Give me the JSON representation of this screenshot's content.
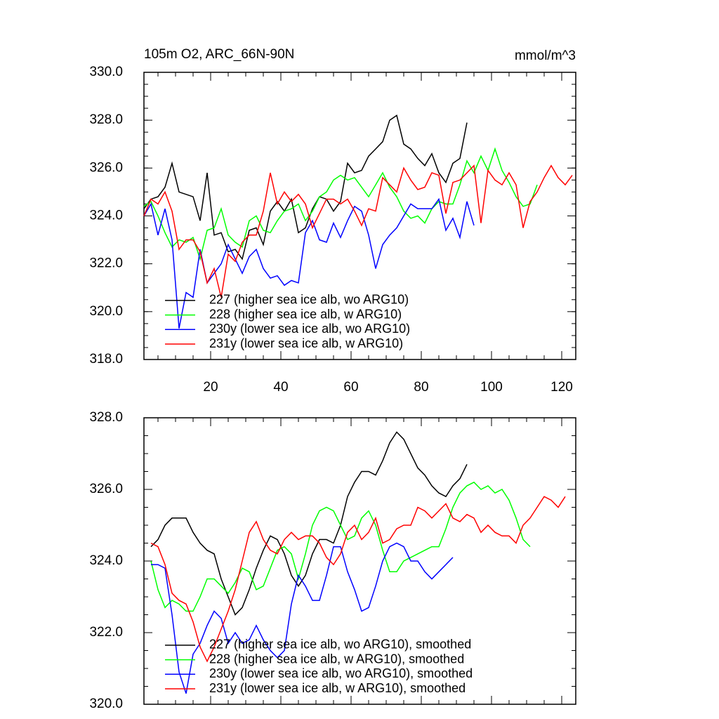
{
  "chart_data": [
    {
      "type": "line",
      "title": "105m O2, ARC_66N-90N",
      "units": "mmol/m^3",
      "xlim": [
        1,
        124
      ],
      "xticks": [
        20,
        40,
        60,
        80,
        100,
        120
      ],
      "ylim": [
        318,
        330
      ],
      "yticks": [
        {
          "value": 318,
          "label": "318.0"
        },
        {
          "value": 320,
          "label": "320.0"
        },
        {
          "value": 322,
          "label": "322.0"
        },
        {
          "value": 324,
          "label": "324.0"
        },
        {
          "value": 326,
          "label": "326.0"
        },
        {
          "value": 328,
          "label": "328.0"
        },
        {
          "value": 330,
          "label": "330.0"
        }
      ],
      "show_xtick_labels": true,
      "legend": "lower left",
      "x": [
        1,
        3,
        5,
        7,
        9,
        11,
        13,
        15,
        17,
        19,
        21,
        23,
        25,
        27,
        29,
        31,
        33,
        35,
        37,
        39,
        41,
        43,
        45,
        47,
        49,
        51,
        53,
        55,
        57,
        59,
        61,
        63,
        65,
        67,
        69,
        71,
        73,
        75,
        77,
        79,
        81,
        83,
        85,
        87,
        89,
        91,
        93,
        95,
        97,
        99,
        101,
        103,
        105,
        107,
        109,
        111,
        113,
        115,
        117,
        119,
        121,
        123
      ],
      "series": [
        {
          "name": "227 (higher sea ice alb, wo ARG10)",
          "color": "#000000",
          "values": [
            324.3,
            324.7,
            324.8,
            325.2,
            326.2,
            325,
            324.9,
            324.8,
            323.8,
            325.8,
            323.2,
            323.3,
            322.5,
            322.6,
            322.2,
            323.4,
            323.5,
            322.8,
            324.2,
            324.6,
            324.2,
            324.7,
            323.3,
            323.5,
            324.3,
            324.8,
            324.7,
            324.2,
            324.6,
            326.2,
            325.8,
            325.9,
            326.5,
            326.8,
            327.1,
            328,
            328.2,
            327,
            326.8,
            326.4,
            326.1,
            326.6,
            325.8,
            325.4,
            326.2,
            326.4,
            327.9,
            null,
            null,
            null,
            null,
            null,
            null,
            null,
            null,
            null,
            null,
            null,
            null,
            null,
            null,
            null
          ]
        },
        {
          "name": "228 (higher sea ice alb, w ARG10)",
          "color": "#00ff00",
          "values": [
            324.4,
            324.6,
            324,
            323.3,
            322.7,
            323,
            322.9,
            323.1,
            322.2,
            323.4,
            323.5,
            324.3,
            323.2,
            322.9,
            322.7,
            323.8,
            324,
            323.4,
            323.3,
            323.8,
            324.2,
            324.3,
            324.5,
            323.8,
            324.2,
            324.8,
            325,
            325.5,
            325.7,
            325.5,
            325.6,
            325.2,
            324.8,
            325.3,
            325.8,
            325.2,
            324.8,
            324.2,
            323.9,
            324,
            323.7,
            324.3,
            324.6,
            324.5,
            324.5,
            325.3,
            326.3,
            325.8,
            326.5,
            325.9,
            326.8,
            325.9,
            325.4,
            324.8,
            324.4,
            324.5,
            325.3,
            null,
            null,
            null,
            null,
            null
          ]
        },
        {
          "name": "230y (lower sea ice alb, wo ARG10)",
          "color": "#0000ff",
          "values": [
            324,
            324.5,
            323.2,
            324.3,
            323,
            319.3,
            320.8,
            320.6,
            322.6,
            321.2,
            321.6,
            322,
            322.8,
            322.2,
            321.6,
            322.3,
            322.6,
            321.8,
            321.4,
            321.5,
            321.1,
            321.3,
            321.2,
            323.3,
            323.8,
            323,
            322.9,
            323.7,
            323.1,
            323.8,
            324.4,
            324.2,
            323.2,
            321.8,
            322.8,
            323.2,
            323.5,
            324,
            324.5,
            324.3,
            324.3,
            324.3,
            324.7,
            323.4,
            323.9,
            323.1,
            324.6,
            323.6,
            null,
            null,
            null,
            null,
            null,
            null,
            null,
            null,
            null,
            null,
            null,
            null,
            null,
            null
          ]
        },
        {
          "name": "231y (lower sea ice alb, w ARG10)",
          "color": "#ff0000",
          "values": [
            324,
            324.7,
            324.5,
            325,
            324.2,
            322.6,
            323,
            323,
            322.5,
            321.2,
            321.8,
            320.6,
            322.4,
            322.1,
            322.9,
            323.2,
            323.2,
            324.2,
            325.8,
            324.5,
            325,
            324.6,
            324.9,
            324.5,
            323.5,
            324.1,
            324.7,
            324.7,
            324.5,
            324.7,
            324.2,
            323.6,
            324.3,
            324.2,
            325.6,
            325.3,
            325,
            326,
            325.5,
            325.1,
            325.2,
            325.8,
            325.7,
            324.1,
            325.4,
            325.5,
            325.8,
            326.1,
            323.7,
            325.9,
            325.5,
            325.3,
            325.8,
            325.3,
            323.5,
            324.6,
            325,
            325.6,
            326.1,
            325.6,
            325.3,
            325.7
          ]
        }
      ]
    },
    {
      "type": "line",
      "xlim": [
        1,
        124
      ],
      "xticks": [
        20,
        40,
        60,
        80,
        100,
        120
      ],
      "ylim": [
        320,
        328
      ],
      "yticks": [
        {
          "value": 320,
          "label": "320.0"
        },
        {
          "value": 322,
          "label": "322.0"
        },
        {
          "value": 324,
          "label": "324.0"
        },
        {
          "value": 326,
          "label": "326.0"
        },
        {
          "value": 328,
          "label": "328.0"
        }
      ],
      "show_xtick_labels": false,
      "legend": "lower left",
      "x": [
        1,
        3,
        5,
        7,
        9,
        11,
        13,
        15,
        17,
        19,
        21,
        23,
        25,
        27,
        29,
        31,
        33,
        35,
        37,
        39,
        41,
        43,
        45,
        47,
        49,
        51,
        53,
        55,
        57,
        59,
        61,
        63,
        65,
        67,
        69,
        71,
        73,
        75,
        77,
        79,
        81,
        83,
        85,
        87,
        89,
        91,
        93,
        95,
        97,
        99,
        101,
        103,
        105,
        107,
        109,
        111,
        113,
        115,
        117,
        119,
        121,
        123
      ],
      "series": [
        {
          "name": "227 (higher sea ice alb, wo ARG10), smoothed",
          "color": "#000000",
          "values": [
            null,
            324.4,
            324.6,
            325,
            325.2,
            325.2,
            325.2,
            324.8,
            324.5,
            324.3,
            324.2,
            323.5,
            323,
            322.5,
            322.7,
            323.2,
            323.8,
            324.3,
            324.7,
            324.6,
            324.2,
            323.6,
            323.3,
            323.6,
            324.2,
            324.6,
            324.6,
            324.5,
            325,
            325.8,
            326.2,
            326.5,
            326.5,
            326.4,
            326.8,
            327.3,
            327.6,
            327.4,
            327,
            326.6,
            326.4,
            326.1,
            325.9,
            325.8,
            326.1,
            326.3,
            326.7,
            null,
            null,
            null,
            null,
            null,
            null,
            null,
            null,
            null,
            null,
            null,
            null,
            null,
            null,
            null
          ]
        },
        {
          "name": "228 (higher sea ice alb, w ARG10), smoothed",
          "color": "#00ff00",
          "values": [
            null,
            324,
            323.2,
            322.7,
            322.9,
            322.8,
            322.6,
            322.6,
            323,
            323.5,
            323.5,
            323.3,
            323.1,
            323.4,
            323.8,
            323.7,
            323.2,
            323.3,
            323.8,
            324.3,
            324.4,
            324.2,
            323.5,
            324.2,
            325,
            325.4,
            325.5,
            325.4,
            325,
            324.6,
            324.7,
            325.2,
            325.4,
            325,
            324.3,
            323.7,
            323.7,
            324,
            324.1,
            324.2,
            324.3,
            324.4,
            324.4,
            324.9,
            325.5,
            325.9,
            326.1,
            326.2,
            326,
            326.1,
            325.9,
            326,
            325.7,
            325.2,
            324.6,
            324.4,
            null,
            null,
            null,
            null,
            null,
            null
          ]
        },
        {
          "name": "230y (lower sea ice alb, wo ARG10), smoothed",
          "color": "#0000ff",
          "values": [
            null,
            323.9,
            323.9,
            323.8,
            322.5,
            320.9,
            320.3,
            321.4,
            321.7,
            322.2,
            322.6,
            322.4,
            321.7,
            322,
            321.7,
            321.8,
            322.2,
            321.8,
            321.5,
            321.3,
            321.5,
            322.8,
            323.6,
            323.3,
            322.9,
            322.9,
            323.6,
            324.4,
            324.4,
            323.7,
            323.2,
            322.6,
            322.7,
            323.3,
            324,
            324.4,
            324.5,
            324.4,
            324,
            324,
            323.7,
            323.5,
            323.7,
            323.9,
            324.1,
            null,
            null,
            null,
            null,
            null,
            null,
            null,
            null,
            null,
            null,
            null,
            null,
            null,
            null,
            null,
            null,
            null
          ]
        },
        {
          "name": "231y (lower sea ice alb, w ARG10), smoothed",
          "color": "#ff0000",
          "values": [
            null,
            324.5,
            324.4,
            323.9,
            323.1,
            322.9,
            322.8,
            322.3,
            321.6,
            321.2,
            321.6,
            322.1,
            322.6,
            323.2,
            324,
            324.8,
            325.1,
            324.6,
            324.3,
            324.2,
            324.6,
            324.8,
            324.6,
            324.7,
            324.7,
            324.5,
            324.1,
            323.9,
            324.2,
            324.8,
            325,
            324.6,
            324.8,
            325.2,
            324.5,
            324.6,
            324.9,
            325,
            325,
            325.5,
            325.4,
            325.2,
            325.4,
            325.6,
            325.2,
            325.1,
            325.3,
            325.2,
            324.8,
            325,
            324.8,
            324.7,
            324.7,
            324.5,
            325,
            325.2,
            325.5,
            325.8,
            325.7,
            325.5,
            325.8,
            null
          ]
        }
      ]
    }
  ]
}
